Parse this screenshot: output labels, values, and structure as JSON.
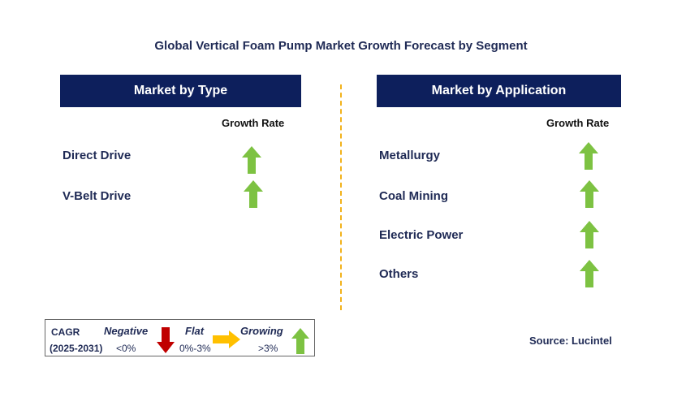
{
  "title": "Global Vertical Foam Pump Market Growth Forecast by Segment",
  "left_panel": {
    "header": "Market by Type",
    "growth_label": "Growth Rate",
    "items": [
      {
        "label": "Direct Drive",
        "trend": "growing"
      },
      {
        "label": "V-Belt Drive",
        "trend": "growing"
      }
    ]
  },
  "right_panel": {
    "header": "Market by Application",
    "growth_label": "Growth Rate",
    "items": [
      {
        "label": "Metallurgy",
        "trend": "growing"
      },
      {
        "label": "Coal Mining",
        "trend": "growing"
      },
      {
        "label": "Electric Power",
        "trend": "growing"
      },
      {
        "label": "Others",
        "trend": "growing"
      }
    ]
  },
  "legend": {
    "cagr": "CAGR",
    "period": "(2025-2031)",
    "negative_label": "Negative",
    "negative_value": "<0%",
    "flat_label": "Flat",
    "flat_value": "0%-3%",
    "growing_label": "Growing",
    "growing_value": ">3%"
  },
  "source": "Source: Lucintel",
  "colors": {
    "header_bg": "#0d1f5c",
    "growing": "#7dc242",
    "negative": "#c00000",
    "flat": "#ffc000",
    "divider": "#f2b21b"
  },
  "icons": {
    "growing": "up-arrow-icon",
    "negative": "down-arrow-icon",
    "flat": "right-arrow-icon"
  }
}
